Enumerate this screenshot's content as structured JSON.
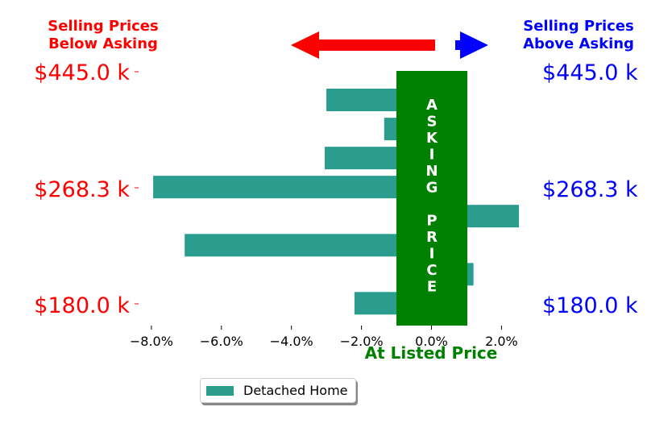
{
  "headers": {
    "left": [
      "Selling Prices",
      "Below Asking"
    ],
    "right": [
      "Selling Prices",
      "Above Asking"
    ]
  },
  "price_labels": [
    "$445.0 k",
    "$268.3 k",
    "$180.0 k"
  ],
  "colors": {
    "below": "#ff0000",
    "above": "#0000ff",
    "asking": "#008000",
    "bar": "#2a9d8f"
  },
  "asking_band_text": [
    "A",
    "S",
    "K",
    "I",
    "N",
    "G",
    "",
    "P",
    "R",
    "I",
    "C",
    "E"
  ],
  "chart_data": {
    "type": "bar",
    "orientation": "horizontal",
    "title": "",
    "xlabel": "At Listed Price",
    "ylabel": "",
    "xlim": [
      -8.0,
      2.4
    ],
    "x_ticks": [
      "−8.0%",
      "−6.0%",
      "−4.0%",
      "−2.0%",
      "0.0%",
      "2.0%"
    ],
    "x_tick_values": [
      -8,
      -6,
      -4,
      -2,
      0,
      2
    ],
    "grid": false,
    "legend": "bottom-left",
    "series": [
      {
        "name": "Detached Home",
        "values": [
          -3.0,
          -1.35,
          -3.05,
          -7.95,
          2.5,
          -7.05,
          1.2,
          -2.2
        ]
      }
    ]
  }
}
